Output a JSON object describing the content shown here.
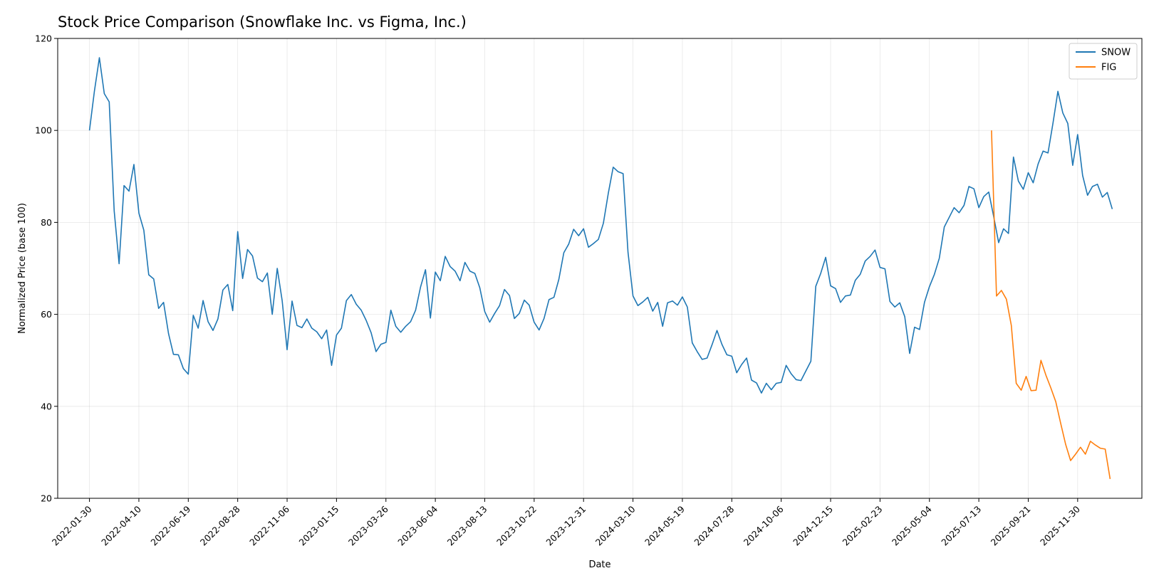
{
  "chart_data": {
    "type": "line",
    "title": "Stock Price Comparison (Snowflake Inc. vs Figma, Inc.)",
    "xlabel": "Date",
    "ylabel": "Normalized Price (base 100)",
    "ylim": [
      20,
      120
    ],
    "yticks": [
      20,
      40,
      60,
      80,
      100,
      120
    ],
    "xlim": [
      "2021-12-16",
      "2026-03-01"
    ],
    "xticks": [
      "2022-01-30",
      "2022-04-10",
      "2022-06-19",
      "2022-08-28",
      "2022-11-06",
      "2023-01-15",
      "2023-03-26",
      "2023-06-04",
      "2023-08-13",
      "2023-10-22",
      "2023-12-31",
      "2024-03-10",
      "2024-05-19",
      "2024-07-28",
      "2024-10-06",
      "2024-12-15",
      "2025-02-23",
      "2025-05-04",
      "2025-07-13",
      "2025-09-21",
      "2025-11-30"
    ],
    "grid": true,
    "legend_position": "top-right",
    "series": [
      {
        "name": "SNOW",
        "color": "#1f77b4",
        "start": "2022-01-30",
        "step_days": 7,
        "values": [
          100,
          108.5,
          115.8,
          108,
          106.2,
          82.5,
          71,
          88,
          86.8,
          92.6,
          82,
          78.3,
          68.6,
          67.7,
          61.3,
          62.6,
          55.8,
          51.3,
          51.2,
          48.2,
          47,
          59.8,
          57,
          63,
          58.4,
          56.5,
          59,
          65.3,
          66.5,
          60.8,
          78,
          67.8,
          74.1,
          72.7,
          67.9,
          67.1,
          69,
          60,
          70,
          63,
          52.3,
          62.9,
          57.6,
          57.1,
          59,
          57,
          56.2,
          54.7,
          56.6,
          48.9,
          55.5,
          57,
          63,
          64.3,
          62.2,
          60.9,
          58.7,
          56,
          51.9,
          53.5,
          53.9,
          60.9,
          57.4,
          56.1,
          57.4,
          58.4,
          60.9,
          65.9,
          69.7,
          59.2,
          69.2,
          67.3,
          72.6,
          70.4,
          69.4,
          67.3,
          71.3,
          69.4,
          68.9,
          65.8,
          60.6,
          58.3,
          60.2,
          61.9,
          65.4,
          64.1,
          59.1,
          60.2,
          63.1,
          62,
          58.3,
          56.6,
          59.1,
          63.2,
          63.7,
          67.6,
          73.4,
          75.3,
          78.5,
          77.1,
          78.6,
          74.6,
          75.4,
          76.3,
          79.8,
          86.3,
          92,
          91,
          90.6,
          73.5,
          64,
          61.9,
          62.7,
          63.7,
          60.7,
          62.6,
          57.4,
          62.5,
          62.9,
          62,
          63.8,
          61.6,
          53.8,
          51.9,
          50.2,
          50.5,
          53.4,
          56.5,
          53.5,
          51.2,
          50.9,
          47.3,
          49.1,
          50.5,
          45.7,
          45.1,
          42.9,
          45,
          43.6,
          45,
          45.2,
          48.9,
          47.1,
          45.8,
          45.6,
          47.7,
          49.8,
          66.1,
          68.9,
          72.4,
          66.2,
          65.6,
          62.6,
          64,
          64.2,
          67.4,
          68.7,
          71.6,
          72.6,
          74,
          70.2,
          69.9,
          62.8,
          61.6,
          62.5,
          59.5,
          51.5,
          57.2,
          56.7,
          62.6,
          66,
          68.7,
          72.2,
          79,
          81.1,
          83.2,
          82.1,
          83.7,
          87.8,
          87.3,
          83.2,
          85.6,
          86.6,
          81.3,
          75.6,
          78.6,
          77.6,
          94.2,
          89,
          87.2,
          90.8,
          88.6,
          92.7,
          95.5,
          95.1,
          101.5,
          108.5,
          103.8,
          101.5,
          92.4,
          99.1,
          90.2,
          85.9,
          87.8,
          88.3,
          85.5,
          86.5,
          82.9
        ]
      },
      {
        "name": "FIG",
        "color": "#ff7f0e",
        "start": "2025-07-31",
        "step_days": 7,
        "values": [
          100,
          64,
          65.2,
          63.3,
          57.6,
          45,
          43.5,
          46.5,
          43.4,
          43.5,
          50,
          46.8,
          44,
          41,
          36.3,
          31.7,
          28.2,
          29.6,
          31.1,
          29.6,
          32.4,
          31.6,
          30.9,
          30.7,
          24.2
        ]
      }
    ]
  }
}
